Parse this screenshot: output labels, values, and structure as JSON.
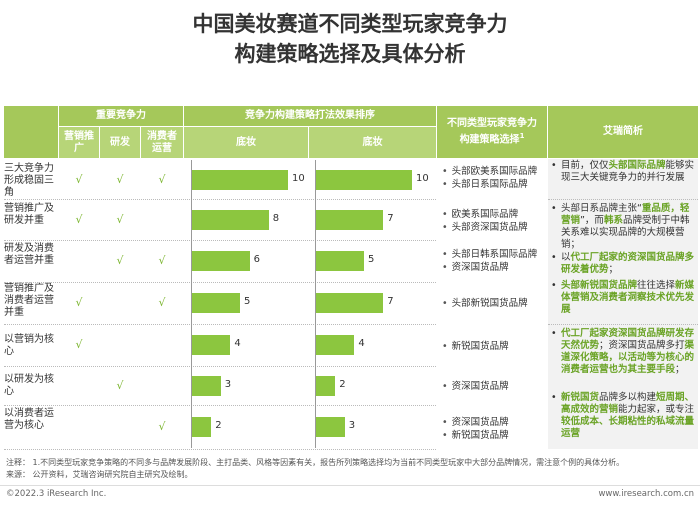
{
  "title": {
    "line1": "中国美妆赛道不同类型玩家竞争力",
    "line2": "构建策略选择及具体分析"
  },
  "header": {
    "important": "重要竞争力",
    "sub": [
      "营销推广",
      "研发",
      "消费者运营"
    ],
    "ranking": "竞争力构建策略打法效果排序",
    "base1": "底妆",
    "base2": "底妆",
    "player": "不同类型玩家竞争力构建策略选择",
    "player_sup": "1",
    "analysis": "艾瑞简析"
  },
  "check_symbol": "√",
  "rows": [
    {
      "label": "三大竞争力形成稳固三角",
      "checks": [
        true,
        true,
        true
      ],
      "v1": 10,
      "v2": 10,
      "brands": [
        "头部欧美系国际品牌",
        "头部日系国际品牌"
      ]
    },
    {
      "label": "营销推广及研发并重",
      "checks": [
        true,
        true,
        false
      ],
      "v1": 8,
      "v2": 7,
      "brands": [
        "欧美系国际品牌",
        "头部资深国货品牌"
      ]
    },
    {
      "label": "研发及消费者运营并重",
      "checks": [
        false,
        true,
        true
      ],
      "v1": 6,
      "v2": 5,
      "brands": [
        "头部日韩系国际品牌",
        "资深国货品牌"
      ]
    },
    {
      "label": "营销推广及消费者运营并重",
      "checks": [
        true,
        false,
        true
      ],
      "v1": 5,
      "v2": 7,
      "brands": [
        "头部新锐国货品牌"
      ]
    },
    {
      "label": "以营销为核心",
      "checks": [
        true,
        false,
        false
      ],
      "v1": 4,
      "v2": 4,
      "brands": [
        "新锐国货品牌"
      ]
    },
    {
      "label": "以研发为核心",
      "checks": [
        false,
        true,
        false
      ],
      "v1": 3,
      "v2": 2,
      "brands": [
        "资深国货品牌"
      ]
    },
    {
      "label": "以消费者运营为核心",
      "checks": [
        false,
        false,
        true
      ],
      "v1": 2,
      "v2": 3,
      "brands": [
        "资深国货品牌",
        "新锐国货品牌"
      ]
    }
  ],
  "chart_data": [
    {
      "type": "bar",
      "title": "底妆",
      "categories": [
        "三大竞争力形成稳固三角",
        "营销推广及研发并重",
        "研发及消费者运营并重",
        "营销推广及消费者运营并重",
        "以营销为核心",
        "以研发为核心",
        "以消费者运营为核心"
      ],
      "values": [
        10,
        8,
        6,
        5,
        4,
        3,
        2
      ]
    },
    {
      "type": "bar",
      "title": "底妆",
      "categories": [
        "三大竞争力形成稳固三角",
        "营销推广及研发并重",
        "研发及消费者运营并重",
        "营销推广及消费者运营并重",
        "以营销为核心",
        "以研发为核心",
        "以消费者运营为核心"
      ],
      "values": [
        10,
        7,
        5,
        7,
        4,
        2,
        3
      ]
    }
  ],
  "analysis": {
    "a1": {
      "pre": "目前，仅仅",
      "b": "头部国际品牌",
      "post": "能够实现三大关键竞争力的并行发展"
    },
    "a2": {
      "pre": "头部日系品牌主张“",
      "b1": "重品质，轻营销",
      "mid": "”，而",
      "b2": "韩系",
      "mid2": "品牌受制于中韩关系难以实现品牌的大规模营销；"
    },
    "a3": {
      "pre": "以",
      "b": "代工厂起家的资深国货品牌多研发着优势",
      "post": "；"
    },
    "a4": {
      "b1": "头部新锐国货品牌",
      "mid": "往往选择",
      "b2": "新媒体营销及消费者洞察技术优先发展"
    },
    "a5": {
      "b1": "代工厂起家资深国货品牌研发存天然优势",
      "mid": "；资深国货品牌多打",
      "b2": "渠道深化策略，以活动等为核心的消费者运营也为其主要手段",
      "post": "；"
    },
    "a6": {
      "b1": "新锐国货",
      "mid": "品牌多以构建",
      "b2": "短周期、高成效的营销",
      "mid2": "能力起家，或专注",
      "b3": "较低成本、长期粘性的私域流量运营"
    }
  },
  "notes": {
    "n1": "注释：  1.不同类型玩家竞争策略的不同多与品牌发展阶段、主打品类、风格等因素有关，报告所列策略选择均为当前不同类型玩家中大部分品牌情况，需注意个例的具体分析。",
    "n2": "来源：  公开资料，艾瑞咨询研究院自主研究及绘制。"
  },
  "footer": {
    "left": "©2022.3 iResearch Inc.",
    "right": "www.iresearch.com.cn"
  },
  "colors": {
    "header": "#a5c85a",
    "bar": "#8cc63f",
    "highlight": "#6aa325"
  }
}
